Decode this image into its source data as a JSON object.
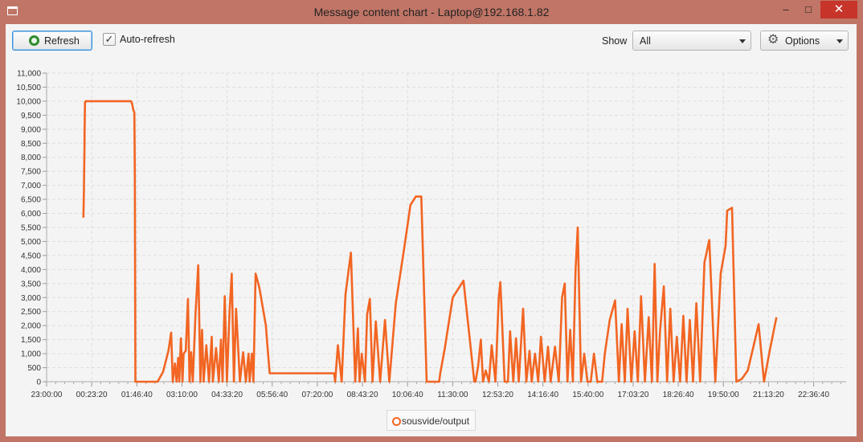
{
  "window": {
    "title": "Message content chart - Laptop@192.168.1.82",
    "minimize_label": "–",
    "maximize_label": "□",
    "close_label": "✕",
    "icon": "window-icon"
  },
  "toolbar": {
    "refresh_label": "Refresh",
    "refresh_icon": "refresh-icon",
    "auto_refresh_label": "Auto-refresh",
    "auto_refresh_checked": true,
    "check_glyph": "✓",
    "show_label": "Show",
    "show_value": "All",
    "options_label": "Options",
    "options_icon": "gear-icon",
    "gear_glyph": "⚙"
  },
  "legend": {
    "label": "sousvide/output"
  },
  "chart_data": {
    "type": "line",
    "title": "",
    "xlabel": "",
    "ylabel": "",
    "ylim": [
      0,
      11000
    ],
    "y_ticks": [
      "0",
      "500",
      "1,000",
      "1,500",
      "2,000",
      "2,500",
      "3,000",
      "3,500",
      "4,000",
      "4,500",
      "5,000",
      "5,500",
      "6,000",
      "6,500",
      "7,000",
      "7,500",
      "8,000",
      "8,500",
      "9,000",
      "9,500",
      "10,000",
      "10,500",
      "11,000"
    ],
    "x_ticks": [
      "23:00:00",
      "00:23:20",
      "01:46:40",
      "03:10:00",
      "04:33:20",
      "05:56:40",
      "07:20:00",
      "08:43:20",
      "10:06:40",
      "11:30:00",
      "12:53:20",
      "14:16:40",
      "15:40:00",
      "17:03:20",
      "18:26:40",
      "19:50:00",
      "21:13:20",
      "22:36:40"
    ],
    "x_unit": "time of day",
    "color": "#f26522",
    "grid": true,
    "legend_position": "bottom-center",
    "series": [
      {
        "name": "sousvide/output",
        "x": [
          "00:08",
          "00:09",
          "00:09",
          "00:10",
          "00:10",
          "00:11",
          "00:12",
          "00:20",
          "01:30",
          "01:36",
          "01:38",
          "01:40",
          "01:42",
          "01:43",
          "01:44",
          "02:00",
          "02:25",
          "02:35",
          "02:45",
          "02:50",
          "02:53",
          "02:57",
          "03:00",
          "03:03",
          "03:05",
          "03:08",
          "03:11",
          "03:13",
          "03:17",
          "03:21",
          "03:24",
          "03:27",
          "03:30",
          "03:35",
          "03:40",
          "03:44",
          "03:47",
          "03:50",
          "03:55",
          "04:00",
          "04:05",
          "04:07",
          "04:13",
          "04:18",
          "04:22",
          "04:25",
          "04:29",
          "04:33",
          "04:38",
          "04:42",
          "04:46",
          "04:50",
          "04:57",
          "05:03",
          "05:08",
          "05:13",
          "05:15",
          "05:19",
          "05:22",
          "05:26",
          "05:33",
          "05:37",
          "05:41",
          "05:45",
          "05:47",
          "05:52",
          "07:51",
          "07:53",
          "07:58",
          "08:05",
          "08:12",
          "08:22",
          "08:30",
          "08:35",
          "08:38",
          "08:42",
          "08:48",
          "08:52",
          "08:57",
          "09:02",
          "09:08",
          "09:16",
          "09:25",
          "09:33",
          "09:45",
          "10:00",
          "10:12",
          "10:22",
          "10:32",
          "10:42",
          "10:50",
          "10:55",
          "11:05",
          "11:07",
          "11:15",
          "11:30",
          "11:50",
          "12:10",
          "12:12",
          "12:17",
          "12:22",
          "12:26",
          "12:31",
          "12:37",
          "12:42",
          "12:49",
          "12:55",
          "12:58",
          "13:06",
          "13:12",
          "13:16",
          "13:22",
          "13:27",
          "13:32",
          "13:40",
          "13:46",
          "13:52",
          "13:56",
          "14:02",
          "14:08",
          "14:13",
          "14:20",
          "14:26",
          "14:31",
          "14:39",
          "14:46",
          "14:52",
          "14:57",
          "15:02",
          "15:07",
          "15:12",
          "15:17",
          "15:21",
          "15:27",
          "15:33",
          "15:39",
          "15:45",
          "15:51",
          "15:57",
          "16:01",
          "16:06",
          "16:11",
          "16:20",
          "16:30",
          "16:37",
          "16:42",
          "16:48",
          "16:53",
          "17:00",
          "17:06",
          "17:12",
          "17:18",
          "17:25",
          "17:32",
          "17:38",
          "17:43",
          "17:48",
          "17:53",
          "18:00",
          "18:06",
          "18:12",
          "18:18",
          "18:24",
          "18:30",
          "18:36",
          "18:42",
          "18:48",
          "18:54",
          "19:00",
          "19:07",
          "19:15",
          "19:24",
          "19:35",
          "19:45",
          "19:54",
          "19:57",
          "20:06",
          "20:14",
          "20:24",
          "20:35",
          "20:43",
          "20:55",
          "21:05",
          "21:16",
          "21:28"
        ],
        "values": [
          5850,
          6900,
          7000,
          8500,
          8800,
          9950,
          10000,
          10000,
          10000,
          10000,
          9900,
          9700,
          9600,
          7500,
          0,
          0,
          0,
          350,
          1100,
          1750,
          0,
          650,
          0,
          850,
          0,
          1550,
          0,
          1000,
          1100,
          2950,
          0,
          1050,
          0,
          2400,
          4150,
          0,
          1850,
          0,
          1300,
          0,
          1600,
          0,
          1200,
          0,
          1500,
          0,
          3050,
          0,
          2500,
          3850,
          0,
          2600,
          0,
          1050,
          0,
          1000,
          0,
          1000,
          0,
          3850,
          3350,
          2900,
          2450,
          2000,
          1500,
          300,
          300,
          0,
          1300,
          0,
          3100,
          4600,
          0,
          1900,
          0,
          1000,
          0,
          2400,
          2950,
          0,
          2150,
          0,
          2200,
          0,
          2800,
          4700,
          6300,
          6600,
          6600,
          0,
          0,
          0,
          0,
          300,
          1150,
          3000,
          3600,
          0,
          0,
          550,
          1500,
          0,
          400,
          0,
          1300,
          0,
          2950,
          3550,
          0,
          0,
          1800,
          0,
          1550,
          0,
          2600,
          0,
          1100,
          0,
          1000,
          0,
          1600,
          0,
          1250,
          0,
          1250,
          0,
          3000,
          3500,
          0,
          1850,
          0,
          4000,
          5500,
          0,
          1000,
          0,
          0,
          1000,
          0,
          0,
          0,
          1000,
          2200,
          2900,
          0,
          2050,
          0,
          2600,
          0,
          1800,
          0,
          3050,
          0,
          2300,
          0,
          4200,
          0,
          1800,
          3400,
          0,
          2600,
          0,
          1600,
          0,
          2350,
          0,
          2200,
          0,
          2800,
          0,
          4250,
          5050,
          0,
          3850,
          4850,
          6100,
          6200,
          0,
          100,
          400,
          1050,
          2050,
          0,
          1150,
          2300
        ]
      }
    ]
  }
}
